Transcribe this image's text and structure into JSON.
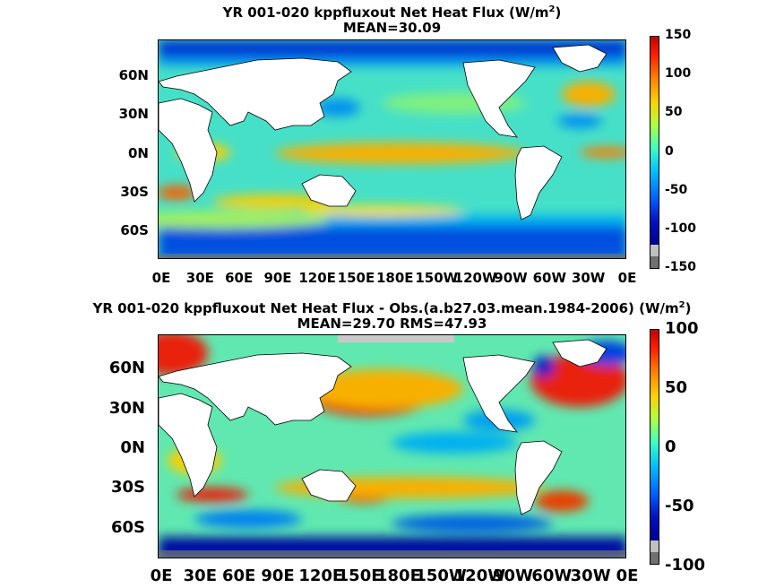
{
  "panel1": {
    "title_main": "YR 001-020 kppfluxout  Net Heat Flux (W/m",
    "title_sup": "2",
    "title_end": ")",
    "mean_line": "MEAN=30.09",
    "lat_labels": [
      "60N",
      "30N",
      "0N",
      "30S",
      "60S"
    ],
    "lon_labels": [
      "0E",
      "30E",
      "60E",
      "90E",
      "120E",
      "150E",
      "180E",
      "150W",
      "120W",
      "90W",
      "60W",
      "30W",
      "0E"
    ],
    "colorbar_ticks": [
      "150",
      "100",
      "50",
      "0",
      "-50",
      "-100",
      "-150"
    ]
  },
  "panel2": {
    "title_main": "YR 001-020 kppfluxout  Net Heat Flux - Obs.(a.b27.03.mean.1984-2006) (W/m",
    "title_sup": "2",
    "title_end": ")",
    "mean_line": "MEAN=29.70 RMS=47.93",
    "lat_labels": [
      "60N",
      "30N",
      "0N",
      "30S",
      "60S"
    ],
    "lon_labels": [
      "0E",
      "30E",
      "60E",
      "90E",
      "120E",
      "150E",
      "180E",
      "150W",
      "120W",
      "90W",
      "60W",
      "30W",
      "0E"
    ],
    "colorbar_ticks": [
      "100",
      "50",
      "0",
      "-50",
      "-100"
    ]
  },
  "colors": {
    "land": "#ffffff",
    "ocean_base": "#46e0c8",
    "strong_pos": "#e8200c",
    "pos": "#f8c000",
    "neg": "#0090f0",
    "strong_neg": "#0018b0",
    "ice": "#707070"
  }
}
